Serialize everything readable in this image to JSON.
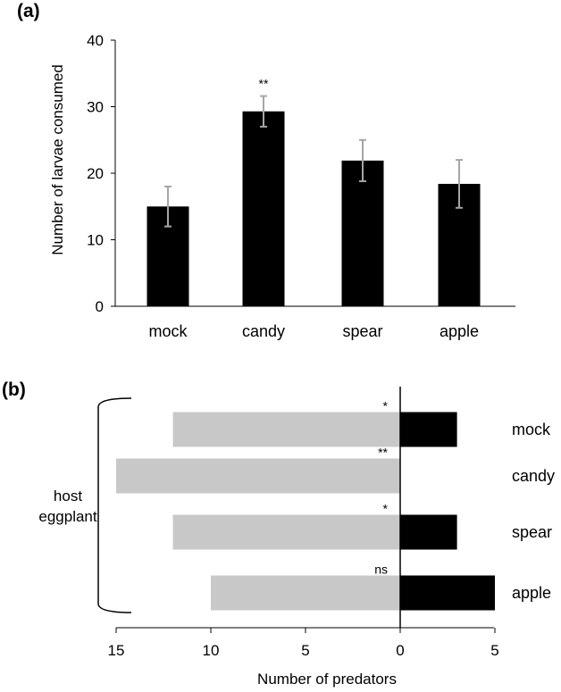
{
  "chart_data": [
    {
      "panel": "(a)",
      "type": "bar",
      "categories": [
        "mock",
        "candy",
        "spear",
        "apple"
      ],
      "values": [
        15.0,
        29.3,
        21.9,
        18.4
      ],
      "error": [
        3.0,
        2.3,
        3.1,
        3.6
      ],
      "significance": [
        "",
        "**",
        "",
        ""
      ],
      "xlabel": "",
      "ylabel": "Number of larvae consumed",
      "ylim": [
        0,
        40
      ],
      "yticks": [
        "0",
        "10",
        "20",
        "30",
        "40"
      ],
      "grid": false,
      "colors": {
        "bar": "#000000",
        "errorbar": "#a6a6a6"
      }
    },
    {
      "panel": "(b)",
      "type": "bar",
      "orientation": "horizontal-diverging",
      "categories": [
        "mock",
        "candy",
        "spear",
        "apple"
      ],
      "series": [
        {
          "values": [
            12,
            15,
            12,
            10
          ],
          "color": "#c8c8c8"
        },
        {
          "values": [
            3,
            0,
            3,
            5
          ],
          "color": "#000000"
        }
      ],
      "significance": [
        "*",
        "**",
        "*",
        "ns"
      ],
      "group_label": [
        "host",
        "eggplant"
      ],
      "xlabel": "Number of predators",
      "xticks": [
        "15",
        "10",
        "5",
        "0",
        "5"
      ],
      "xlim": [
        -15,
        5
      ],
      "grid": false
    }
  ]
}
